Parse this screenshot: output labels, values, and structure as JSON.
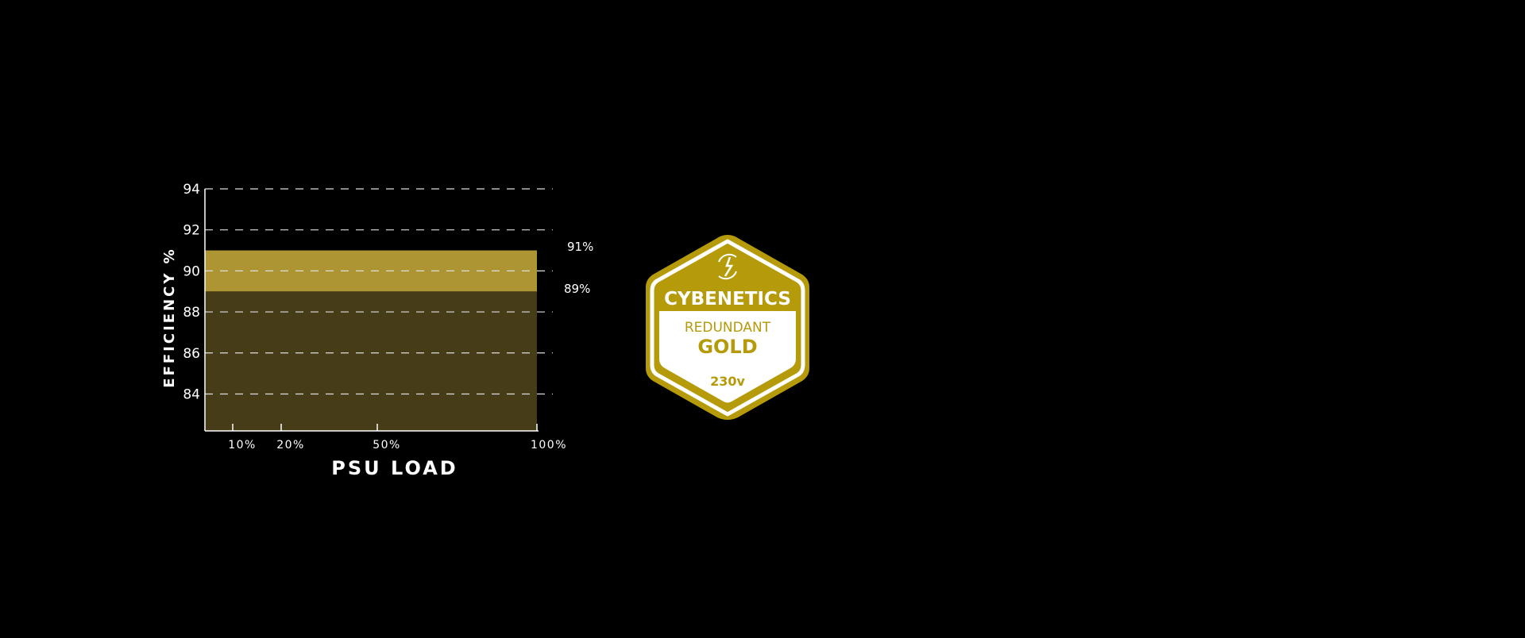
{
  "chart_data": {
    "type": "area",
    "ylabel": "EFFICIENCY %",
    "xlabel": "PSU LOAD",
    "ylim": [
      82.2,
      94
    ],
    "yticks": [
      "94",
      "92",
      "90",
      "88",
      "86",
      "84"
    ],
    "ytick_values": [
      94,
      92,
      90,
      88,
      86,
      84
    ],
    "xticks": [
      "10%",
      "20%",
      "50%",
      "100%"
    ],
    "grid": true,
    "bands": [
      {
        "from": 82.2,
        "to": 89,
        "color": "#463d18"
      },
      {
        "from": 89,
        "to": 91,
        "color": "#ad9534"
      }
    ],
    "annotations": [
      "91%",
      "89%"
    ]
  },
  "badge": {
    "brand": "CYBENETICS",
    "line1": "REDUNDANT",
    "line2": "GOLD",
    "voltage": "230v",
    "icon": "lightning-refresh-icon",
    "color": "#b59a0a"
  }
}
